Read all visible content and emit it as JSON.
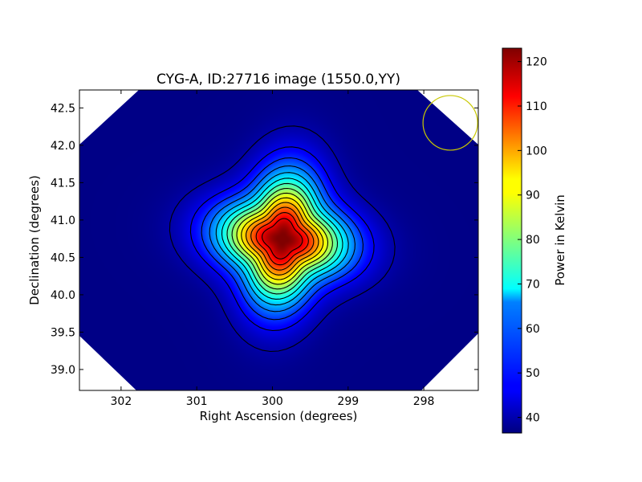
{
  "chart_data": {
    "type": "heatmap",
    "title": "CYG-A, ID:27716 image (1550.0,YY)",
    "xlabel": "Right Ascension (degrees)",
    "ylabel": "Declination (degrees)",
    "xlim": [
      302.55,
      297.28
    ],
    "ylim": [
      38.72,
      42.74
    ],
    "x_inverted": true,
    "xticks": [
      302,
      301,
      300,
      299,
      298
    ],
    "yticks": [
      39.0,
      39.5,
      40.0,
      40.5,
      41.0,
      41.5,
      42.0,
      42.5
    ],
    "xtick_labels": [
      "302",
      "301",
      "300",
      "299",
      "298"
    ],
    "ytick_labels": [
      "39.0",
      "39.5",
      "40.0",
      "40.5",
      "41.0",
      "41.5",
      "42.0",
      "42.5"
    ],
    "colormap": "jet",
    "colorbar": {
      "label": "Power in Kelvin",
      "min": 36.5,
      "max": 123,
      "ticks": [
        40,
        50,
        60,
        70,
        80,
        90,
        100,
        110,
        120
      ],
      "tick_labels": [
        "40",
        "50",
        "60",
        "70",
        "80",
        "90",
        "100",
        "110",
        "120"
      ]
    },
    "source": {
      "ra": 299.87,
      "dec": 40.75,
      "peak": 123,
      "background": 37
    },
    "contour_count": 14,
    "beam_circle": {
      "ra": 297.65,
      "dec": 42.3,
      "color": "#c8c800"
    },
    "grid": false
  }
}
